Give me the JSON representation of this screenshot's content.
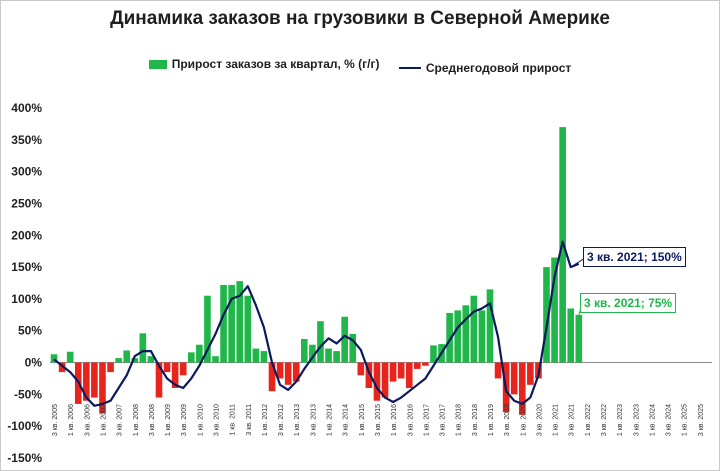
{
  "chart_data": {
    "type": "bar+line",
    "title": "Динамика заказов на грузовики в Северной Америке",
    "xlabel": "",
    "ylabel": "",
    "ylim": [
      -150,
      400
    ],
    "yticks": [
      -150,
      -100,
      -50,
      0,
      50,
      100,
      150,
      200,
      250,
      300,
      350,
      400
    ],
    "ytick_labels": [
      "-150%",
      "-100%",
      "-50%",
      "0%",
      "50%",
      "100%",
      "150%",
      "200%",
      "250%",
      "300%",
      "350%",
      "400%"
    ],
    "xtick_labels": [
      "3 кв. 2005",
      "1 кв. 2006",
      "3 кв. 2006",
      "1 кв. 2007",
      "3 кв. 2007",
      "1 кв. 2008",
      "3 кв. 2008",
      "1 кв. 2009",
      "3 кв. 2009",
      "1 кв. 2010",
      "3 кв. 2010",
      "1 кв. 2011",
      "3 кв. 2011",
      "1 кв. 2012",
      "3 кв. 2012",
      "1 кв. 2013",
      "3 кв. 2013",
      "1 кв. 2014",
      "3 кв. 2014",
      "1 кв. 2015",
      "3 кв. 2015",
      "1 кв. 2016",
      "3 кв. 2016",
      "1 кв. 2017",
      "3 кв. 2017",
      "1 кв. 2018",
      "3 кв. 2018",
      "1 кв. 2019",
      "3 кв. 2019",
      "1 кв. 2020",
      "3 кв. 2020",
      "1 кв. 2021",
      "3 кв. 2021",
      "1 кв. 2022",
      "3 кв. 2022",
      "1 кв. 2023",
      "3 кв. 2023",
      "1 кв. 2024",
      "3 кв. 2024",
      "1 кв. 2025",
      "3 кв. 2025"
    ],
    "grid": false,
    "legend_position": "top",
    "series": [
      {
        "name": "Прирост заказов за квартал, % (г/г)",
        "kind": "bar",
        "color_positive": "#21b64a",
        "color_negative": "#e8251d",
        "values": [
          13,
          -15,
          17,
          -65,
          -60,
          -55,
          -80,
          -15,
          7,
          19,
          7,
          46,
          10,
          -55,
          -15,
          -40,
          -20,
          16,
          28,
          105,
          10,
          122,
          122,
          128,
          105,
          22,
          18,
          -45,
          -25,
          -35,
          -30,
          37,
          28,
          65,
          22,
          18,
          72,
          45,
          -20,
          -40,
          -60,
          -55,
          -30,
          -25,
          -40,
          -10,
          -5,
          27,
          29,
          78,
          82,
          90,
          105,
          82,
          115,
          -25,
          -78,
          -50,
          -82,
          -35,
          -25,
          150,
          165,
          370,
          85,
          75
        ]
      },
      {
        "name": "Среднегодовой прирост",
        "kind": "line",
        "color": "#0b1a5e",
        "values": [
          5,
          -5,
          -15,
          -30,
          -55,
          -68,
          -65,
          -60,
          -40,
          -20,
          10,
          18,
          18,
          -5,
          -25,
          -35,
          -40,
          -25,
          -5,
          20,
          45,
          75,
          100,
          105,
          120,
          90,
          55,
          0,
          -35,
          -43,
          -30,
          -10,
          8,
          25,
          38,
          30,
          42,
          35,
          20,
          -15,
          -40,
          -55,
          -62,
          -55,
          -45,
          -35,
          -25,
          -5,
          15,
          35,
          55,
          68,
          80,
          85,
          93,
          40,
          -45,
          -60,
          -65,
          -55,
          -20,
          55,
          135,
          190,
          150,
          155
        ]
      }
    ],
    "annotations": [
      {
        "text": "3 кв. 2021; 150%",
        "series": "Среднегодовой прирост"
      },
      {
        "text": "3 кв. 2021; 75%",
        "series": "Прирост заказов за квартал, % (г/г)"
      }
    ]
  }
}
